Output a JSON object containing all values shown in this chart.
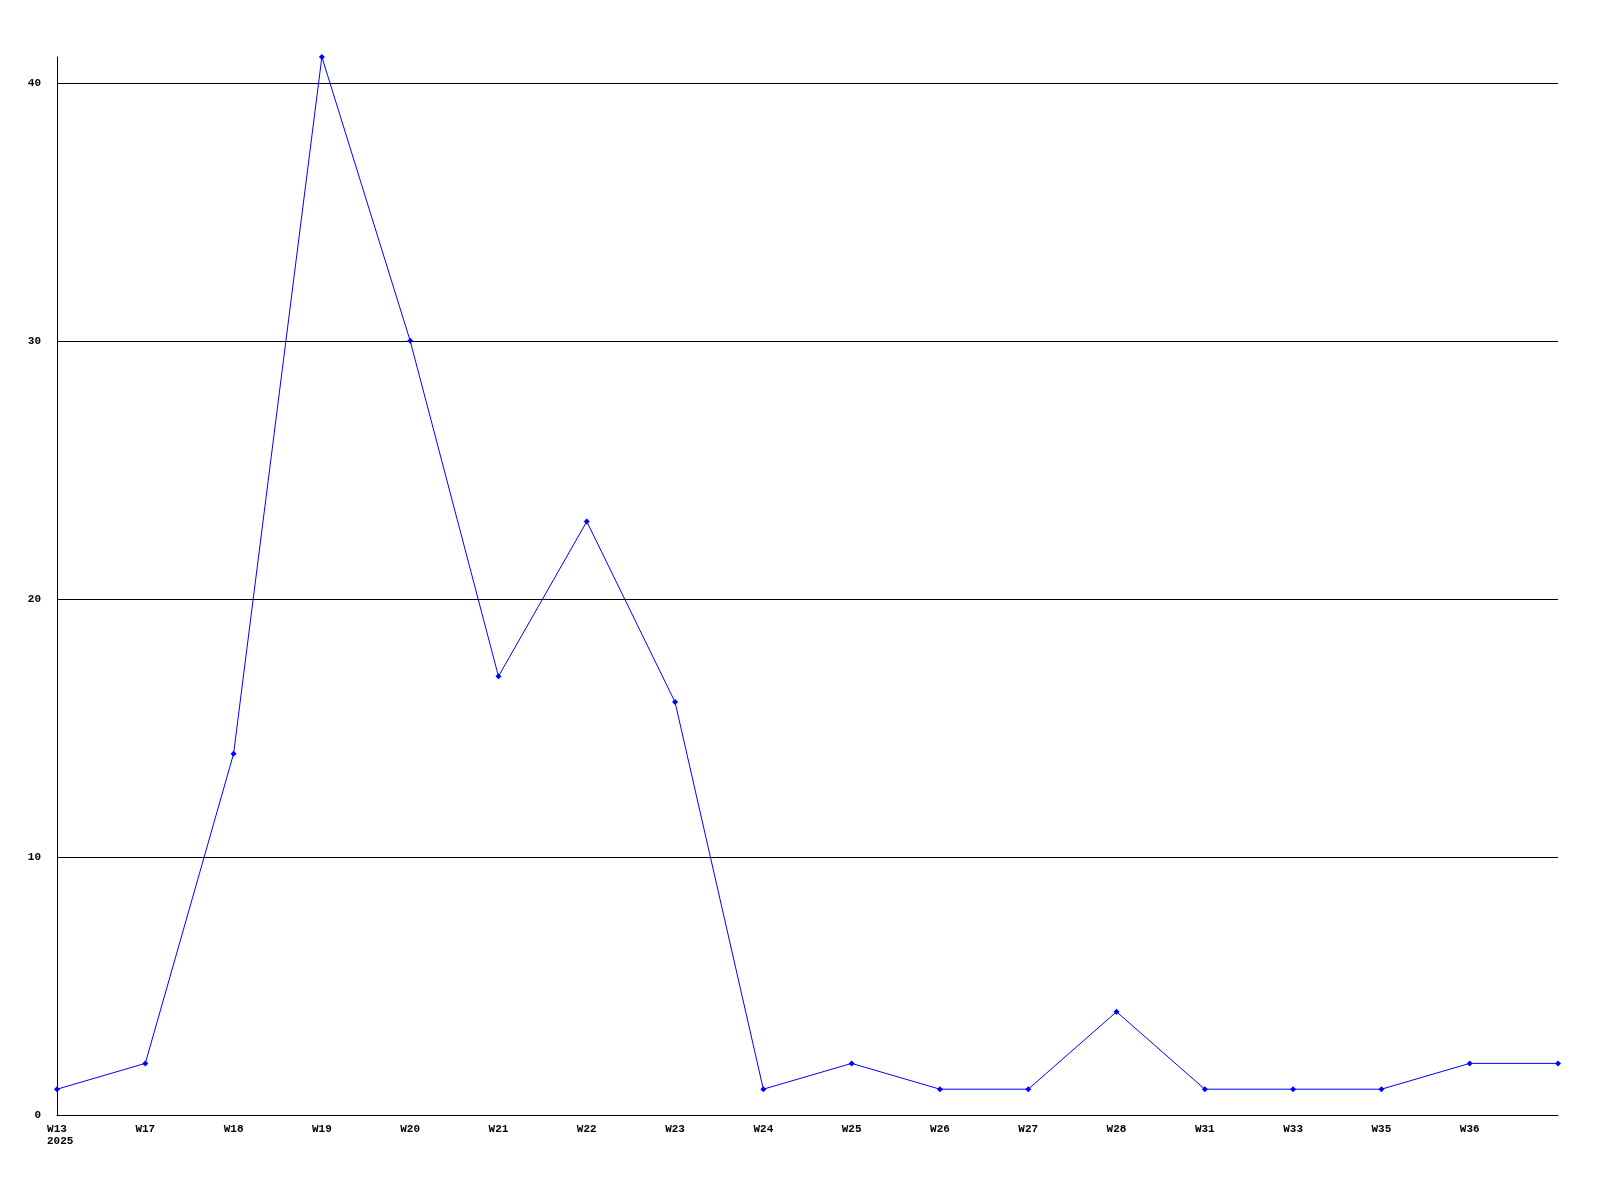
{
  "chart_data": {
    "type": "line",
    "categories": [
      "W13",
      "W17",
      "W18",
      "W19",
      "W20",
      "W21",
      "W22",
      "W23",
      "W24",
      "W25",
      "W26",
      "W27",
      "W28",
      "W31",
      "W33",
      "W35",
      "W36",
      null
    ],
    "series": [
      {
        "color": "#0000ff",
        "values": [
          1,
          2,
          14,
          41,
          30,
          17,
          23,
          16,
          1,
          2,
          1,
          1,
          4,
          1,
          1,
          1,
          2,
          2
        ]
      }
    ],
    "ylim": [
      0,
      41
    ],
    "yticks": [
      0,
      10,
      20,
      30,
      40
    ],
    "grid": "y",
    "marker": "diamond",
    "line_style": "solid",
    "annotations": [
      "2025"
    ]
  }
}
